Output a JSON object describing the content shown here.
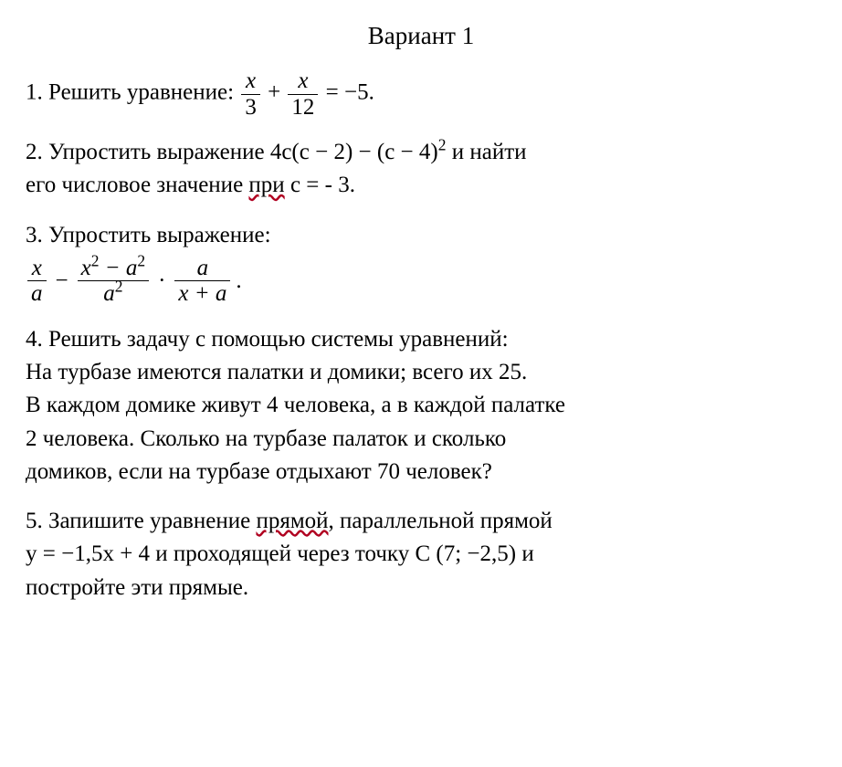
{
  "colors": {
    "text": "#000000",
    "background": "#ffffff",
    "wavy_underline": "#b00020"
  },
  "typography": {
    "base_fontsize_pt": 19,
    "title_fontsize_pt": 20,
    "font_family": "Georgia/Times New Roman serif"
  },
  "title": "Вариант 1",
  "problems": {
    "p1": {
      "lead": "1. Решить уравнение: ",
      "frac1_num": "x",
      "frac1_den": "3",
      "plus": "+",
      "frac2_num": "x",
      "frac2_den": "12",
      "eq": "= −5",
      "period": "."
    },
    "p2": {
      "line1a": "2. Упростить выражение 4c(c − 2) − (c − 4)",
      "exp": "2",
      "line1b": "  и найти",
      "line2a": "его числовое значение ",
      "underlined": "при",
      "line2b": " c = - 3."
    },
    "p3": {
      "lead": "3. Упростить выражение:",
      "t1_num": "x",
      "t1_den": "a",
      "minus": "−",
      "t2_num_a": "x",
      "t2_num_exp": "2",
      "t2_num_b": " − a",
      "t2_num_exp2": "2",
      "t2_den_a": "a",
      "t2_den_exp": "2",
      "dot": "·",
      "t3_num": "a",
      "t3_den": "x + a",
      "period": "."
    },
    "p4": {
      "l1": "4. Решить задачу с помощью системы уравнений:",
      "l2": "На турбазе имеются палатки и домики; всего их 25.",
      "l3": "В каждом домике живут 4 человека, а в каждой палатке",
      "l4": " 2 человека. Сколько на турбазе палаток и сколько",
      "l5": "домиков, если на турбазе отдыхают 70 человек?"
    },
    "p5": {
      "l1a": "5. Запишите уравнение ",
      "u1": "прямой",
      "l1b": ", параллельной прямой",
      "l2": "y = −1,5x + 4 и проходящей через точку C (7; −2,5) и",
      "l3": "постройте эти прямые."
    }
  }
}
